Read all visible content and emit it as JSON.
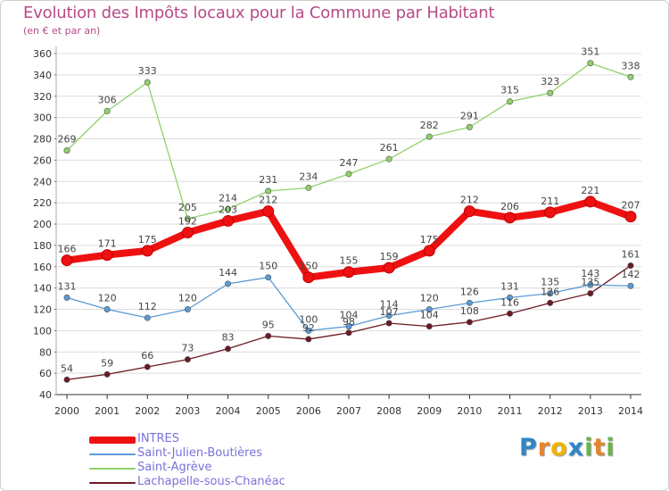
{
  "header": {
    "title": "Evolution des Impôts locaux pour la Commune par Habitant",
    "subtitle": "(en € et par an)"
  },
  "brand": {
    "letters": [
      "P",
      "r",
      "o",
      "x",
      "i",
      "t",
      "i"
    ],
    "colors": [
      "#2e86c8",
      "#e8832a",
      "#f0b400",
      "#2e86c8",
      "#6ab34a",
      "#e8832a",
      "#6ab34a"
    ]
  },
  "chart_data": {
    "type": "line",
    "title": "Evolution des Impôts locaux pour la Commune par Habitant",
    "subtitle": "(en € et par an)",
    "x": [
      "2000",
      "2001",
      "2002",
      "2003",
      "2004",
      "2005",
      "2006",
      "2007",
      "2008",
      "2009",
      "2010",
      "2011",
      "2012",
      "2013",
      "2014"
    ],
    "ylim": [
      40,
      360
    ],
    "yticks": [
      40,
      60,
      80,
      100,
      120,
      140,
      160,
      180,
      200,
      220,
      240,
      260,
      280,
      300,
      320,
      340,
      360
    ],
    "grid": true,
    "legend_position": "bottom-left",
    "series": [
      {
        "name": "INTRES",
        "color": "#ee1111",
        "values": [
          166,
          171,
          175,
          192,
          203,
          212,
          150,
          155,
          159,
          175,
          212,
          206,
          211,
          221,
          207
        ]
      },
      {
        "name": "Saint-Julien-Boutières",
        "color": "#5b9bd5",
        "values": [
          131,
          120,
          112,
          120,
          144,
          150,
          100,
          104,
          114,
          120,
          126,
          131,
          135,
          143,
          142
        ]
      },
      {
        "name": "Saint-Agrève",
        "color": "#8fd16a",
        "values": [
          269,
          306,
          333,
          205,
          214,
          231,
          234,
          247,
          261,
          282,
          291,
          315,
          323,
          351,
          338
        ]
      },
      {
        "name": "Lachapelle-sous-Chanéac",
        "color": "#6b1a24",
        "values": [
          54,
          59,
          66,
          73,
          83,
          95,
          92,
          98,
          107,
          104,
          108,
          116,
          126,
          135,
          161
        ]
      }
    ]
  }
}
